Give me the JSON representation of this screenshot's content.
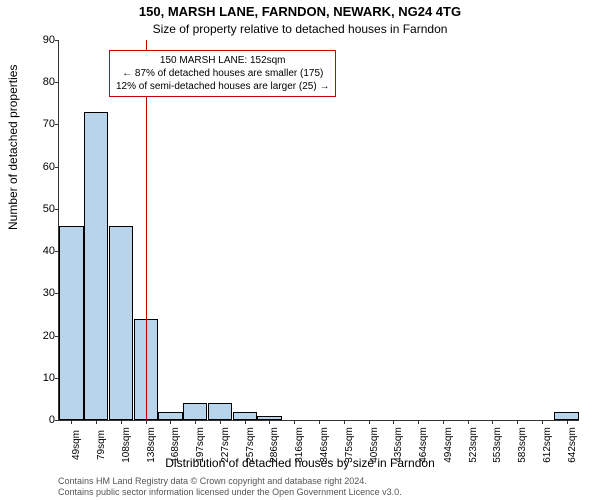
{
  "chart": {
    "type": "histogram",
    "title_main": "150, MARSH LANE, FARNDON, NEWARK, NG24 4TG",
    "title_sub": "Size of property relative to detached houses in Farndon",
    "x_label": "Distribution of detached houses by size in Farndon",
    "y_label": "Number of detached properties",
    "y_ticks": [
      0,
      10,
      20,
      30,
      40,
      50,
      60,
      70,
      80,
      90
    ],
    "ylim": [
      0,
      90
    ],
    "x_categories": [
      "49sqm",
      "79sqm",
      "108sqm",
      "138sqm",
      "168sqm",
      "197sqm",
      "227sqm",
      "257sqm",
      "286sqm",
      "316sqm",
      "346sqm",
      "375sqm",
      "405sqm",
      "435sqm",
      "464sqm",
      "494sqm",
      "523sqm",
      "553sqm",
      "583sqm",
      "612sqm",
      "642sqm"
    ],
    "bar_values": [
      46,
      73,
      46,
      24,
      2,
      4,
      4,
      2,
      1,
      0,
      0,
      0,
      0,
      0,
      0,
      0,
      0,
      0,
      0,
      0,
      2
    ],
    "bar_fill": "#b8d4ea",
    "bar_border": "#000000",
    "ref_line_color": "#c00000",
    "ref_line_position_category_index": 3.5,
    "info_box": {
      "line1": "150 MARSH LANE: 152sqm",
      "line2": "← 87% of detached houses are smaller (175)",
      "line3": "12% of semi-detached houses are larger (25) →"
    },
    "footnote_line1": "Contains HM Land Registry data © Crown copyright and database right 2024.",
    "footnote_line2": "Contains public sector information licensed under the Open Government Licence v3.0.",
    "plot_bg": "#ffffff"
  }
}
